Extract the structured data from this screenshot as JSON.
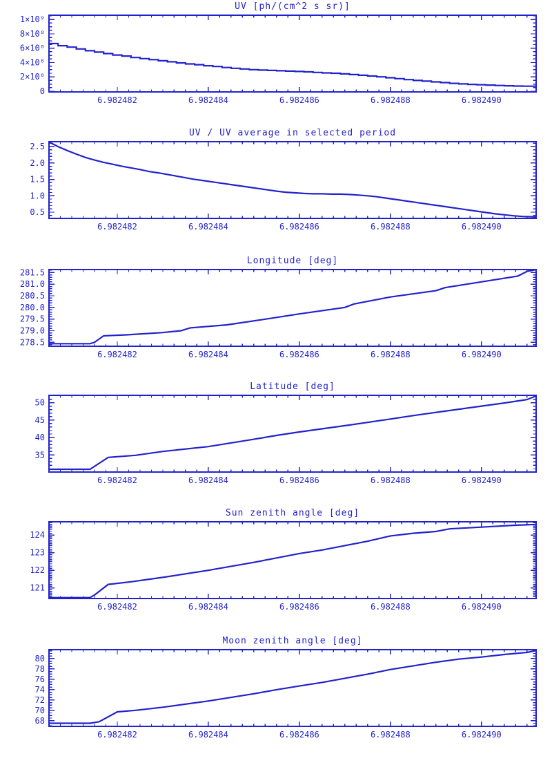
{
  "figure": {
    "background": "#ffffff",
    "accent": "#2222cc"
  },
  "chart_data": [
    {
      "id": "uv",
      "type": "line",
      "line_mode": "step",
      "title": "UV [ph/(cm^2 s sr)]",
      "xlabel": "",
      "ylabel": "",
      "grid": false,
      "legend": "none",
      "x_range": [
        6.9824805,
        6.9824912
      ],
      "x_minor_step": 2.5e-07,
      "x_ticks": [
        {
          "v": 6.982482,
          "label": "6.982482"
        },
        {
          "v": 6.982484,
          "label": "6.982484"
        },
        {
          "v": 6.982486,
          "label": "6.982486"
        },
        {
          "v": 6.982488,
          "label": "6.982488"
        },
        {
          "v": 6.98249,
          "label": "6.982490"
        }
      ],
      "y_range": [
        -10000000.0,
        1060000000.0
      ],
      "y_minor_step": 50000000.0,
      "y_ticks": [
        {
          "v": 0,
          "label": "0"
        },
        {
          "v": 200000000.0,
          "label": "2×10⁸"
        },
        {
          "v": 400000000.0,
          "label": "4×10⁸"
        },
        {
          "v": 600000000.0,
          "label": "6×10⁸"
        },
        {
          "v": 800000000.0,
          "label": "8×10⁸"
        },
        {
          "v": 1000000000.0,
          "label": "1×10⁹"
        }
      ],
      "points": [
        [
          6.9824805,
          665000000.0
        ],
        [
          6.9824807,
          635000000.0
        ],
        [
          6.9824809,
          615000000.0
        ],
        [
          6.9824811,
          590000000.0
        ],
        [
          6.9824813,
          565000000.0
        ],
        [
          6.9824815,
          545000000.0
        ],
        [
          6.9824817,
          525000000.0
        ],
        [
          6.9824819,
          505000000.0
        ],
        [
          6.9824821,
          490000000.0
        ],
        [
          6.9824823,
          470000000.0
        ],
        [
          6.9824825,
          455000000.0
        ],
        [
          6.9824827,
          440000000.0
        ],
        [
          6.9824829,
          425000000.0
        ],
        [
          6.9824831,
          410000000.0
        ],
        [
          6.9824833,
          395000000.0
        ],
        [
          6.9824835,
          380000000.0
        ],
        [
          6.9824837,
          370000000.0
        ],
        [
          6.9824839,
          355000000.0
        ],
        [
          6.9824841,
          345000000.0
        ],
        [
          6.9824843,
          330000000.0
        ],
        [
          6.9824845,
          320000000.0
        ],
        [
          6.9824847,
          310000000.0
        ],
        [
          6.9824849,
          300000000.0
        ],
        [
          6.9824851,
          295000000.0
        ],
        [
          6.9824853,
          290000000.0
        ],
        [
          6.9824855,
          285000000.0
        ],
        [
          6.9824857,
          280000000.0
        ],
        [
          6.9824859,
          275000000.0
        ],
        [
          6.9824861,
          270000000.0
        ],
        [
          6.9824863,
          262000000.0
        ],
        [
          6.9824865,
          255000000.0
        ],
        [
          6.9824867,
          250000000.0
        ],
        [
          6.9824869,
          242000000.0
        ],
        [
          6.9824871,
          232000000.0
        ],
        [
          6.9824873,
          222000000.0
        ],
        [
          6.9824875,
          212000000.0
        ],
        [
          6.9824877,
          200000000.0
        ],
        [
          6.9824879,
          188000000.0
        ],
        [
          6.9824881,
          175000000.0
        ],
        [
          6.9824883,
          162000000.0
        ],
        [
          6.9824885,
          150000000.0
        ],
        [
          6.9824887,
          140000000.0
        ],
        [
          6.9824889,
          130000000.0
        ],
        [
          6.9824891,
          120000000.0
        ],
        [
          6.9824893,
          110000000.0
        ],
        [
          6.9824895,
          102000000.0
        ],
        [
          6.9824897,
          95000000.0
        ],
        [
          6.9824899,
          90000000.0
        ],
        [
          6.9824901,
          85000000.0
        ],
        [
          6.9824903,
          80000000.0
        ],
        [
          6.9824905,
          76000000.0
        ],
        [
          6.9824907,
          72000000.0
        ],
        [
          6.9824909,
          70000000.0
        ],
        [
          6.9824912,
          68000000.0
        ]
      ]
    },
    {
      "id": "uv-ratio",
      "type": "line",
      "line_mode": "linear",
      "title": "UV / UV average in selected period",
      "xlabel": "",
      "ylabel": "",
      "grid": false,
      "legend": "none",
      "x_range": [
        6.9824805,
        6.9824912
      ],
      "x_minor_step": 2.5e-07,
      "x_ticks": [
        {
          "v": 6.982482,
          "label": "6.982482"
        },
        {
          "v": 6.982484,
          "label": "6.982484"
        },
        {
          "v": 6.982486,
          "label": "6.982486"
        },
        {
          "v": 6.982488,
          "label": "6.982488"
        },
        {
          "v": 6.98249,
          "label": "6.982490"
        }
      ],
      "y_range": [
        0.31,
        2.65
      ],
      "y_minor_step": 0.1,
      "y_ticks": [
        {
          "v": 0.5,
          "label": "0.5"
        },
        {
          "v": 1.0,
          "label": "1.0"
        },
        {
          "v": 1.5,
          "label": "1.5"
        },
        {
          "v": 2.0,
          "label": "2.0"
        },
        {
          "v": 2.5,
          "label": "2.5"
        }
      ],
      "points": [
        [
          6.9824805,
          2.64
        ],
        [
          6.9824807,
          2.5
        ],
        [
          6.9824809,
          2.38
        ],
        [
          6.9824811,
          2.27
        ],
        [
          6.9824813,
          2.17
        ],
        [
          6.9824815,
          2.09
        ],
        [
          6.9824817,
          2.02
        ],
        [
          6.9824819,
          1.96
        ],
        [
          6.9824821,
          1.9
        ],
        [
          6.9824823,
          1.85
        ],
        [
          6.9824825,
          1.8
        ],
        [
          6.9824827,
          1.74
        ],
        [
          6.9824829,
          1.7
        ],
        [
          6.9824831,
          1.65
        ],
        [
          6.9824833,
          1.6
        ],
        [
          6.9824835,
          1.55
        ],
        [
          6.9824837,
          1.5
        ],
        [
          6.9824839,
          1.46
        ],
        [
          6.9824841,
          1.42
        ],
        [
          6.9824843,
          1.38
        ],
        [
          6.9824845,
          1.34
        ],
        [
          6.9824847,
          1.3
        ],
        [
          6.9824849,
          1.26
        ],
        [
          6.9824851,
          1.22
        ],
        [
          6.9824853,
          1.18
        ],
        [
          6.9824855,
          1.14
        ],
        [
          6.9824857,
          1.11
        ],
        [
          6.9824859,
          1.09
        ],
        [
          6.9824861,
          1.07
        ],
        [
          6.9824863,
          1.06
        ],
        [
          6.9824865,
          1.06
        ],
        [
          6.9824867,
          1.05
        ],
        [
          6.9824869,
          1.05
        ],
        [
          6.9824871,
          1.04
        ],
        [
          6.9824873,
          1.02
        ],
        [
          6.9824875,
          1.0
        ],
        [
          6.9824877,
          0.97
        ],
        [
          6.9824879,
          0.93
        ],
        [
          6.9824881,
          0.89
        ],
        [
          6.9824883,
          0.85
        ],
        [
          6.9824885,
          0.81
        ],
        [
          6.9824887,
          0.77
        ],
        [
          6.9824889,
          0.73
        ],
        [
          6.9824891,
          0.69
        ],
        [
          6.9824893,
          0.65
        ],
        [
          6.9824895,
          0.61
        ],
        [
          6.9824897,
          0.57
        ],
        [
          6.9824899,
          0.53
        ],
        [
          6.9824901,
          0.49
        ],
        [
          6.9824903,
          0.45
        ],
        [
          6.9824905,
          0.42
        ],
        [
          6.9824907,
          0.39
        ],
        [
          6.9824909,
          0.37
        ],
        [
          6.9824911,
          0.36
        ],
        [
          6.9824912,
          0.35
        ]
      ]
    },
    {
      "id": "longitude",
      "type": "line",
      "line_mode": "linear",
      "title": "Longitude [deg]",
      "xlabel": "",
      "ylabel": "",
      "grid": false,
      "legend": "none",
      "x_range": [
        6.9824805,
        6.9824912
      ],
      "x_minor_step": 2.5e-07,
      "x_ticks": [
        {
          "v": 6.982482,
          "label": "6.982482"
        },
        {
          "v": 6.982484,
          "label": "6.982484"
        },
        {
          "v": 6.982486,
          "label": "6.982486"
        },
        {
          "v": 6.982488,
          "label": "6.982488"
        },
        {
          "v": 6.98249,
          "label": "6.982490"
        }
      ],
      "y_range": [
        278.33,
        281.63
      ],
      "y_minor_step": 0.1,
      "y_ticks": [
        {
          "v": 278.5,
          "label": "278.5"
        },
        {
          "v": 279.0,
          "label": "279.0"
        },
        {
          "v": 279.5,
          "label": "279.5"
        },
        {
          "v": 280.0,
          "label": "280.0"
        },
        {
          "v": 280.5,
          "label": "280.5"
        },
        {
          "v": 281.0,
          "label": "281.0"
        },
        {
          "v": 281.5,
          "label": "281.5"
        }
      ],
      "points": [
        [
          6.9824805,
          278.44
        ],
        [
          6.9824814,
          278.44
        ],
        [
          6.9824815,
          278.5
        ],
        [
          6.9824817,
          278.78
        ],
        [
          6.9824822,
          278.82
        ],
        [
          6.982483,
          278.92
        ],
        [
          6.9824834,
          279.0
        ],
        [
          6.9824836,
          279.12
        ],
        [
          6.9824844,
          279.25
        ],
        [
          6.9824852,
          279.48
        ],
        [
          6.982486,
          279.72
        ],
        [
          6.982487,
          280.0
        ],
        [
          6.9824872,
          280.15
        ],
        [
          6.982488,
          280.45
        ],
        [
          6.982489,
          280.72
        ],
        [
          6.9824892,
          280.85
        ],
        [
          6.98249,
          281.1
        ],
        [
          6.9824908,
          281.35
        ],
        [
          6.982491,
          281.55
        ],
        [
          6.9824912,
          281.63
        ]
      ]
    },
    {
      "id": "latitude",
      "type": "line",
      "line_mode": "linear",
      "title": "Latitude [deg]",
      "xlabel": "",
      "ylabel": "",
      "grid": false,
      "legend": "none",
      "x_range": [
        6.9824805,
        6.9824912
      ],
      "x_minor_step": 2.5e-07,
      "x_ticks": [
        {
          "v": 6.982482,
          "label": "6.982482"
        },
        {
          "v": 6.982484,
          "label": "6.982484"
        },
        {
          "v": 6.982486,
          "label": "6.982486"
        },
        {
          "v": 6.982488,
          "label": "6.982488"
        },
        {
          "v": 6.98249,
          "label": "6.982490"
        }
      ],
      "y_range": [
        30.1,
        52.1
      ],
      "y_minor_step": 1,
      "y_ticks": [
        {
          "v": 35,
          "label": "35"
        },
        {
          "v": 40,
          "label": "40"
        },
        {
          "v": 45,
          "label": "45"
        },
        {
          "v": 50,
          "label": "50"
        }
      ],
      "points": [
        [
          6.9824805,
          30.9
        ],
        [
          6.9824814,
          30.9
        ],
        [
          6.9824818,
          34.3
        ],
        [
          6.9824824,
          34.9
        ],
        [
          6.982483,
          36.0
        ],
        [
          6.982484,
          37.4
        ],
        [
          6.982485,
          39.5
        ],
        [
          6.9824855,
          40.6
        ],
        [
          6.982486,
          41.6
        ],
        [
          6.982487,
          43.4
        ],
        [
          6.982488,
          45.3
        ],
        [
          6.9824885,
          46.3
        ],
        [
          6.982489,
          47.2
        ],
        [
          6.98249,
          49.0
        ],
        [
          6.9824905,
          49.9
        ],
        [
          6.982491,
          50.9
        ],
        [
          6.9824912,
          51.9
        ]
      ]
    },
    {
      "id": "sun-zenith",
      "type": "line",
      "line_mode": "linear",
      "title": "Sun zenith angle [deg]",
      "xlabel": "",
      "ylabel": "",
      "grid": false,
      "legend": "none",
      "x_range": [
        6.9824805,
        6.9824912
      ],
      "x_minor_step": 2.5e-07,
      "x_ticks": [
        {
          "v": 6.982482,
          "label": "6.982482"
        },
        {
          "v": 6.982484,
          "label": "6.982484"
        },
        {
          "v": 6.982486,
          "label": "6.982486"
        },
        {
          "v": 6.982488,
          "label": "6.982488"
        },
        {
          "v": 6.98249,
          "label": "6.982490"
        }
      ],
      "y_range": [
        120.4,
        124.75
      ],
      "y_minor_step": 0.1,
      "y_ticks": [
        {
          "v": 121,
          "label": "121"
        },
        {
          "v": 122,
          "label": "122"
        },
        {
          "v": 123,
          "label": "123"
        },
        {
          "v": 124,
          "label": "124"
        }
      ],
      "points": [
        [
          6.9824805,
          120.45
        ],
        [
          6.9824814,
          120.45
        ],
        [
          6.9824815,
          120.6
        ],
        [
          6.9824818,
          121.2
        ],
        [
          6.9824823,
          121.35
        ],
        [
          6.982483,
          121.6
        ],
        [
          6.982484,
          122.0
        ],
        [
          6.982485,
          122.45
        ],
        [
          6.9824855,
          122.7
        ],
        [
          6.982486,
          122.95
        ],
        [
          6.9824865,
          123.15
        ],
        [
          6.982487,
          123.4
        ],
        [
          6.9824875,
          123.65
        ],
        [
          6.982488,
          123.95
        ],
        [
          6.9824885,
          124.1
        ],
        [
          6.982489,
          124.2
        ],
        [
          6.9824893,
          124.35
        ],
        [
          6.98249,
          124.45
        ],
        [
          6.9824907,
          124.55
        ],
        [
          6.9824912,
          124.6
        ]
      ]
    },
    {
      "id": "moon-zenith",
      "type": "line",
      "line_mode": "linear",
      "title": "Moon zenith angle [deg]",
      "xlabel": "",
      "ylabel": "",
      "grid": false,
      "legend": "none",
      "x_range": [
        6.9824805,
        6.9824912
      ],
      "x_minor_step": 2.5e-07,
      "x_ticks": [
        {
          "v": 6.982482,
          "label": "6.982482"
        },
        {
          "v": 6.982484,
          "label": "6.982484"
        },
        {
          "v": 6.982486,
          "label": "6.982486"
        },
        {
          "v": 6.982488,
          "label": "6.982488"
        },
        {
          "v": 6.98249,
          "label": "6.982490"
        }
      ],
      "y_range": [
        66.9,
        81.73
      ],
      "y_minor_step": 0.5,
      "y_ticks": [
        {
          "v": 68,
          "label": "68"
        },
        {
          "v": 70,
          "label": "70"
        },
        {
          "v": 72,
          "label": "72"
        },
        {
          "v": 74,
          "label": "74"
        },
        {
          "v": 76,
          "label": "76"
        },
        {
          "v": 78,
          "label": "78"
        },
        {
          "v": 80,
          "label": "80"
        }
      ],
      "points": [
        [
          6.9824805,
          67.5
        ],
        [
          6.9824814,
          67.5
        ],
        [
          6.9824816,
          67.8
        ],
        [
          6.982482,
          69.7
        ],
        [
          6.9824824,
          70.0
        ],
        [
          6.982483,
          70.6
        ],
        [
          6.982484,
          71.8
        ],
        [
          6.982485,
          73.2
        ],
        [
          6.9824855,
          74.0
        ],
        [
          6.982486,
          74.7
        ],
        [
          6.9824865,
          75.4
        ],
        [
          6.982487,
          76.2
        ],
        [
          6.9824875,
          77.0
        ],
        [
          6.982488,
          77.9
        ],
        [
          6.9824885,
          78.6
        ],
        [
          6.982489,
          79.3
        ],
        [
          6.9824895,
          79.9
        ],
        [
          6.98249,
          80.3
        ],
        [
          6.9824905,
          80.8
        ],
        [
          6.982491,
          81.2
        ],
        [
          6.9824912,
          81.55
        ]
      ]
    }
  ]
}
